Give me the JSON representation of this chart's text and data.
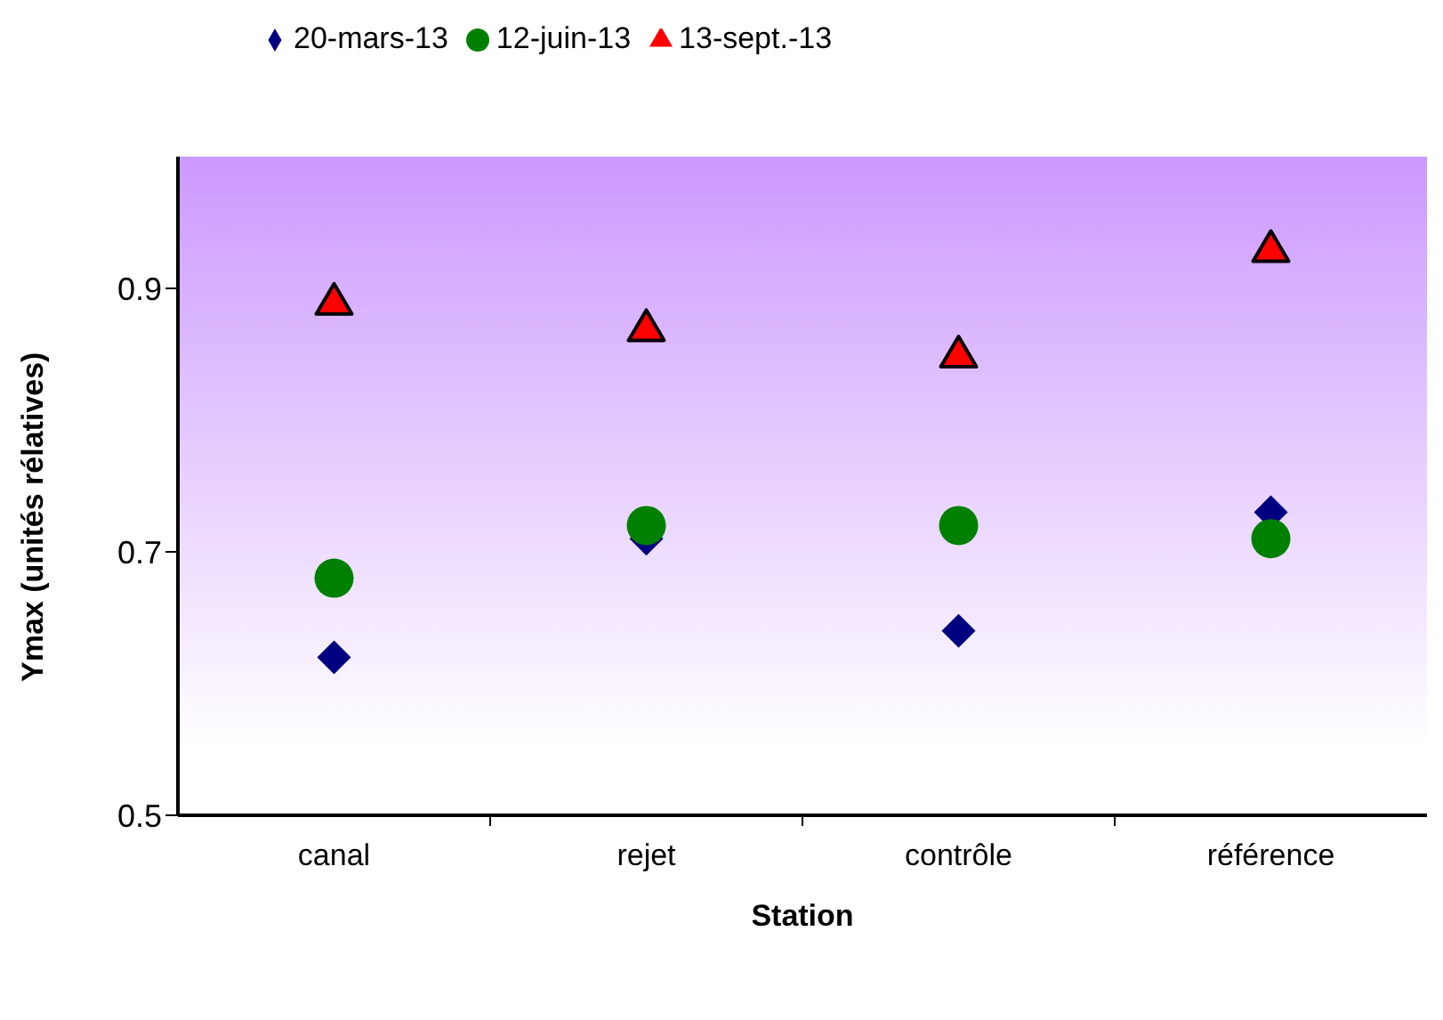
{
  "chart_data": {
    "type": "scatter",
    "xlabel": "Station",
    "ylabel": "Ymax (unités rélatives)",
    "categories": [
      "canal",
      "rejet",
      "contrôle",
      "référence"
    ],
    "series": [
      {
        "name": "20-mars-13",
        "color": "#000080",
        "marker": "diamond",
        "values": [
          0.62,
          0.71,
          0.64,
          0.73
        ]
      },
      {
        "name": "12-juin-13",
        "color": "#008000",
        "marker": "circle",
        "values": [
          0.68,
          0.72,
          0.72,
          0.71
        ]
      },
      {
        "name": "13-sept.-13",
        "color": "#ff0000",
        "marker": "triangle",
        "values": [
          0.89,
          0.87,
          0.85,
          0.93
        ]
      }
    ],
    "ylim": [
      0.5,
      1.0
    ],
    "yticks": [
      0.5,
      0.7,
      0.9
    ],
    "legend": "top"
  }
}
